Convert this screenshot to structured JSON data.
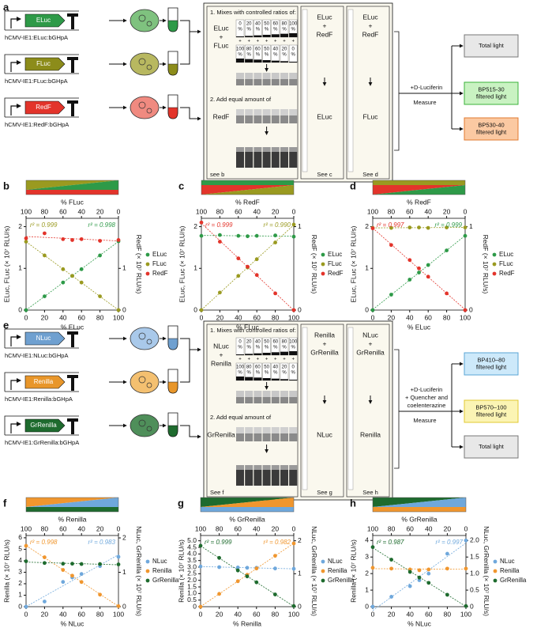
{
  "panels": {
    "a": {
      "label": "a",
      "constructs": [
        {
          "gene": "ELuc",
          "cassette": "hCMV-IE1:ELuc:bGHpA"
        },
        {
          "gene": "FLuc",
          "cassette": "hCMV-IE1:FLuc:bGHpA"
        },
        {
          "gene": "RedF",
          "cassette": "hCMV-IE1:RedF:bGHpA"
        }
      ],
      "mix": {
        "title": "1. Mixes with controlled ratios of:",
        "first": "ELuc",
        "plus": "+",
        "second": "FLuc",
        "top_pct": [
          "0",
          "20",
          "40",
          "50",
          "60",
          "80",
          "100"
        ],
        "bottom_pct": [
          "100",
          "80",
          "60",
          "50",
          "40",
          "20",
          "0"
        ],
        "pct": "%",
        "step2": "2. Add equal amount of",
        "added": "RedF",
        "see": "see b"
      },
      "columns": [
        {
          "first": "ELuc",
          "plus": "+",
          "second": "RedF",
          "result": "ELuc",
          "see": "See c"
        },
        {
          "first": "ELuc",
          "plus": "+",
          "second": "RedF",
          "result": "FLuc",
          "see": "See d"
        }
      ],
      "reagents": [
        "+D-Luciferin"
      ],
      "measure": "Measure",
      "outputs": [
        [
          "Total light"
        ],
        [
          "BP515-30",
          "filtered light"
        ],
        [
          "BP530-40",
          "filtered light"
        ]
      ]
    },
    "e": {
      "label": "e",
      "constructs": [
        {
          "gene": "NLuc",
          "cassette": "hCMV-IE1:NLuc:bGHpA"
        },
        {
          "gene": "Renilla",
          "cassette": "hCMV-IE1:Renilla:bGHpA"
        },
        {
          "gene": "GrRenilla",
          "cassette": "hCMV-IE1:GrRenilla:bGHpA"
        }
      ],
      "mix": {
        "title": "1. Mixes with controlled ratios of:",
        "first": "NLuc",
        "plus": "+",
        "second": "Renilla",
        "top_pct": [
          "0",
          "20",
          "40",
          "50",
          "60",
          "80",
          "100"
        ],
        "bottom_pct": [
          "100",
          "80",
          "60",
          "50",
          "40",
          "20",
          "0"
        ],
        "pct": "%",
        "step2": "2. Add equal amount of",
        "added": "GrRenilla",
        "see": "See f"
      },
      "columns": [
        {
          "first": "Renilla",
          "plus": "+",
          "second": "GrRenilla",
          "result": "NLuc",
          "see": "See g"
        },
        {
          "first": "NLuc",
          "plus": "+",
          "second": "GrRenilla",
          "result": "Renilla",
          "see": "See h"
        }
      ],
      "reagents": [
        "+D-Luciferin",
        "+ Quencher and",
        "coelenterazine"
      ],
      "measure": "Measure",
      "outputs": [
        [
          "BP410–80",
          "filtered light"
        ],
        [
          "BP570–100",
          "filtered light"
        ],
        [
          "Total light"
        ]
      ]
    }
  },
  "chart_data": [
    {
      "type": "scatter",
      "panel_label": "b",
      "x2label": "% FLuc",
      "xlabel": "% ELuc",
      "ylabel": "ELuc, FLuc (× 10⁷ RLU/s)",
      "y2label": "RedF (× 10⁷ RLU/s)",
      "x": [
        0,
        20,
        40,
        50,
        60,
        80,
        100
      ],
      "xlim": [
        0,
        100
      ],
      "xticks": [
        0,
        20,
        40,
        60,
        80,
        100
      ],
      "x2lim": [
        100,
        0
      ],
      "x2ticks": [
        100,
        80,
        60,
        40,
        20,
        0
      ],
      "ylim": [
        0,
        2.2
      ],
      "yticks": [
        0,
        1,
        2
      ],
      "y2lim": [
        0,
        2.2
      ],
      "y2ticks": [
        0,
        1
      ],
      "series": [
        {
          "name": "ELuc",
          "color": "#2e9a48",
          "values": [
            0,
            0.33,
            0.66,
            0.82,
            0.98,
            1.31,
            1.65
          ]
        },
        {
          "name": "FLuc",
          "color": "#9a9a20",
          "values": [
            1.64,
            1.31,
            0.98,
            0.82,
            0.66,
            0.33,
            0
          ]
        },
        {
          "name": "RedF",
          "color": "#e3342b",
          "axis": "y2",
          "values": [
            1.72,
            1.84,
            1.7,
            1.68,
            1.7,
            1.66,
            1.68
          ]
        }
      ],
      "annotations": [
        {
          "text": "r² = 0.999",
          "color": "#9a9a20"
        },
        {
          "text": "r² = 0.998",
          "color": "#2e9a48"
        }
      ],
      "legend": "right",
      "fit_lines": true
    },
    {
      "type": "scatter",
      "panel_label": "c",
      "x2label": "% RedF",
      "xlabel": "% FLuc",
      "ylabel": "ELuc, FLuc (× 10⁷ RLU/s)",
      "y2label": "RedF (× 10⁷ RLU/s)",
      "x": [
        0,
        20,
        40,
        50,
        60,
        80,
        100
      ],
      "xlim": [
        0,
        100
      ],
      "xticks": [
        0,
        20,
        40,
        60,
        80,
        100
      ],
      "x2lim": [
        100,
        0
      ],
      "x2ticks": [
        100,
        80,
        60,
        40,
        20,
        0
      ],
      "ylim": [
        0,
        2.2
      ],
      "yticks": [
        0,
        1,
        2
      ],
      "y2lim": [
        0,
        1.1
      ],
      "y2ticks": [
        0,
        1
      ],
      "series": [
        {
          "name": "ELuc",
          "color": "#2e9a48",
          "values": [
            1.78,
            1.8,
            1.78,
            1.77,
            1.78,
            1.79,
            1.76
          ]
        },
        {
          "name": "FLuc",
          "color": "#9a9a20",
          "values": [
            0,
            0.42,
            0.82,
            1.02,
            1.22,
            1.62,
            2.05
          ]
        },
        {
          "name": "RedF",
          "color": "#e3342b",
          "axis": "y2",
          "values": [
            1.05,
            0.82,
            0.62,
            0.52,
            0.42,
            0.2,
            0
          ]
        }
      ],
      "annotations": [
        {
          "text": "r² = 0.999",
          "color": "#e3342b"
        },
        {
          "text": "r² = 0.990",
          "color": "#9a9a20"
        }
      ],
      "legend": "right",
      "fit_lines": true
    },
    {
      "type": "scatter",
      "panel_label": "d",
      "x2label": "% RedF",
      "xlabel": "% ELuc",
      "ylabel": "ELuc, FLuc (× 10⁷ RLU/s)",
      "y2label": "RedF (× 10⁷ RLU/s)",
      "x": [
        0,
        20,
        40,
        50,
        60,
        80,
        100
      ],
      "xlim": [
        0,
        100
      ],
      "xticks": [
        0,
        20,
        40,
        60,
        80,
        100
      ],
      "x2lim": [
        100,
        0
      ],
      "x2ticks": [
        100,
        80,
        60,
        40,
        20,
        0
      ],
      "ylim": [
        0,
        2.2
      ],
      "yticks": [
        0,
        1,
        2
      ],
      "y2lim": [
        0,
        1.1
      ],
      "y2ticks": [
        0,
        1
      ],
      "series": [
        {
          "name": "ELuc",
          "color": "#2e9a48",
          "values": [
            0,
            0.37,
            0.73,
            0.9,
            1.08,
            1.43,
            1.78
          ]
        },
        {
          "name": "FLuc",
          "color": "#9a9a20",
          "values": [
            1.97,
            1.97,
            1.98,
            1.98,
            1.97,
            1.98,
            1.98
          ]
        },
        {
          "name": "RedF",
          "color": "#e3342b",
          "axis": "y2",
          "values": [
            0.98,
            0.78,
            0.6,
            0.5,
            0.4,
            0.2,
            0
          ]
        }
      ],
      "annotations": [
        {
          "text": "r² = 0.997",
          "color": "#e3342b"
        },
        {
          "text": "r² = 0.999",
          "color": "#2e9a48"
        }
      ],
      "legend": "right",
      "fit_lines": true
    },
    {
      "type": "scatter",
      "panel_label": "f",
      "x2label": "% Renilla",
      "xlabel": "% NLuc",
      "ylabel": "Renilla (× 10⁷ RLU/s)",
      "y2label": "NLuc, GrRenilla (× 10⁷ RLU/s)",
      "x": [
        0,
        20,
        40,
        50,
        60,
        80,
        100
      ],
      "xlim": [
        0,
        100
      ],
      "xticks": [
        0,
        20,
        40,
        60,
        80,
        100
      ],
      "x2lim": [
        100,
        0
      ],
      "x2ticks": [
        100,
        80,
        60,
        40,
        20,
        0
      ],
      "ylim": [
        0,
        6.2
      ],
      "yticks": [
        0,
        1,
        2,
        3,
        4,
        5,
        6
      ],
      "y2lim": [
        0,
        2.07
      ],
      "y2ticks": [
        0,
        1,
        2
      ],
      "series": [
        {
          "name": "NLuc",
          "color": "#6fa8dc",
          "axis": "y2",
          "values": [
            0,
            0.15,
            0.72,
            0.85,
            0.95,
            1.18,
            1.45
          ]
        },
        {
          "name": "Renilla",
          "color": "#f0962e",
          "values": [
            5.3,
            4.3,
            3.2,
            2.7,
            2.15,
            1.05,
            0.05
          ]
        },
        {
          "name": "GrRenilla",
          "color": "#1e6b2e",
          "axis": "y2",
          "values": [
            1.32,
            1.27,
            1.25,
            1.25,
            1.24,
            1.24,
            1.23
          ]
        }
      ],
      "annotations": [
        {
          "text": "r² = 0.998",
          "color": "#f0962e"
        },
        {
          "text": "r² = 0.983",
          "color": "#6fa8dc"
        }
      ],
      "legend": "right",
      "fit_lines": true
    },
    {
      "type": "scatter",
      "panel_label": "g",
      "x2label": "% GrRenilla",
      "xlabel": "% Renilla",
      "ylabel": "Renilla (× 10⁷ RLU/s)",
      "y2label": "NLuc, GrRenilla (× 10⁷ RLU/s)",
      "x": [
        0,
        20,
        40,
        50,
        60,
        80,
        100
      ],
      "xlim": [
        0,
        100
      ],
      "xticks": [
        0,
        20,
        40,
        60,
        80,
        100
      ],
      "x2lim": [
        100,
        0
      ],
      "x2ticks": [
        100,
        80,
        60,
        40,
        20,
        0
      ],
      "ylim": [
        0,
        5.4
      ],
      "yticks": [
        0,
        0.5,
        {
          "value": 1,
          "label": "1.0"
        },
        1.5,
        {
          "value": 2,
          "label": "2.0"
        },
        2.5,
        {
          "value": 3,
          "label": "3.0"
        },
        3.5,
        {
          "value": 4,
          "label": "4.0"
        },
        4.5,
        {
          "value": 5,
          "label": "5.0"
        }
      ],
      "y2lim": [
        0,
        2.16
      ],
      "y2ticks": [
        0,
        1,
        2
      ],
      "series": [
        {
          "name": "NLuc",
          "color": "#6fa8dc",
          "axis": "y2",
          "values": [
            1.22,
            1.2,
            1.19,
            1.18,
            1.18,
            1.16,
            1.15
          ]
        },
        {
          "name": "Renilla",
          "color": "#f0962e",
          "values": [
            0,
            0.97,
            1.93,
            2.42,
            2.9,
            3.86,
            4.8
          ]
        },
        {
          "name": "GrRenilla",
          "color": "#1e6b2e",
          "axis": "y2",
          "values": [
            1.85,
            1.48,
            1.1,
            0.92,
            0.74,
            0.37,
            0.02
          ]
        }
      ],
      "annotations": [
        {
          "text": "r² = 0.999",
          "color": "#1e6b2e"
        },
        {
          "text": "r² = 0.982",
          "color": "#f0962e"
        }
      ],
      "legend": "right",
      "fit_lines": true
    },
    {
      "type": "scatter",
      "panel_label": "h",
      "x2label": "% GrRenilla",
      "xlabel": "% NLuc",
      "ylabel": "Renilla (× 10⁷ RLU/s)",
      "y2label": "NLuc, GrRenilla (× 10⁷ RLU/s)",
      "x": [
        0,
        20,
        40,
        50,
        60,
        80,
        100
      ],
      "xlim": [
        0,
        100
      ],
      "xticks": [
        0,
        20,
        40,
        60,
        80,
        100
      ],
      "x2lim": [
        100,
        0
      ],
      "x2ticks": [
        100,
        80,
        60,
        40,
        20,
        0
      ],
      "ylim": [
        0,
        4.3
      ],
      "yticks": [
        0,
        1,
        2,
        3,
        4
      ],
      "y2lim": [
        0,
        2.15
      ],
      "y2ticks": [
        0,
        0.5,
        {
          "value": 1,
          "label": "1.0"
        },
        1.5,
        {
          "value": 2,
          "label": "2.0"
        }
      ],
      "series": [
        {
          "name": "NLuc",
          "color": "#6fa8dc",
          "axis": "y2",
          "values": [
            0,
            0.3,
            0.62,
            0.8,
            1.0,
            1.6,
            2.0
          ]
        },
        {
          "name": "Renilla",
          "color": "#f0962e",
          "values": [
            2.35,
            2.3,
            2.25,
            2.2,
            2.25,
            2.3,
            2.3
          ]
        },
        {
          "name": "GrRenilla",
          "color": "#1e6b2e",
          "axis": "y2",
          "values": [
            1.8,
            1.42,
            1.05,
            0.88,
            0.72,
            0.36,
            0.02
          ]
        }
      ],
      "annotations": [
        {
          "text": "r² = 0.987",
          "color": "#1e6b2e"
        },
        {
          "text": "r² = 0.997",
          "color": "#6fa8dc"
        }
      ],
      "legend": "right",
      "fit_lines": true
    }
  ]
}
